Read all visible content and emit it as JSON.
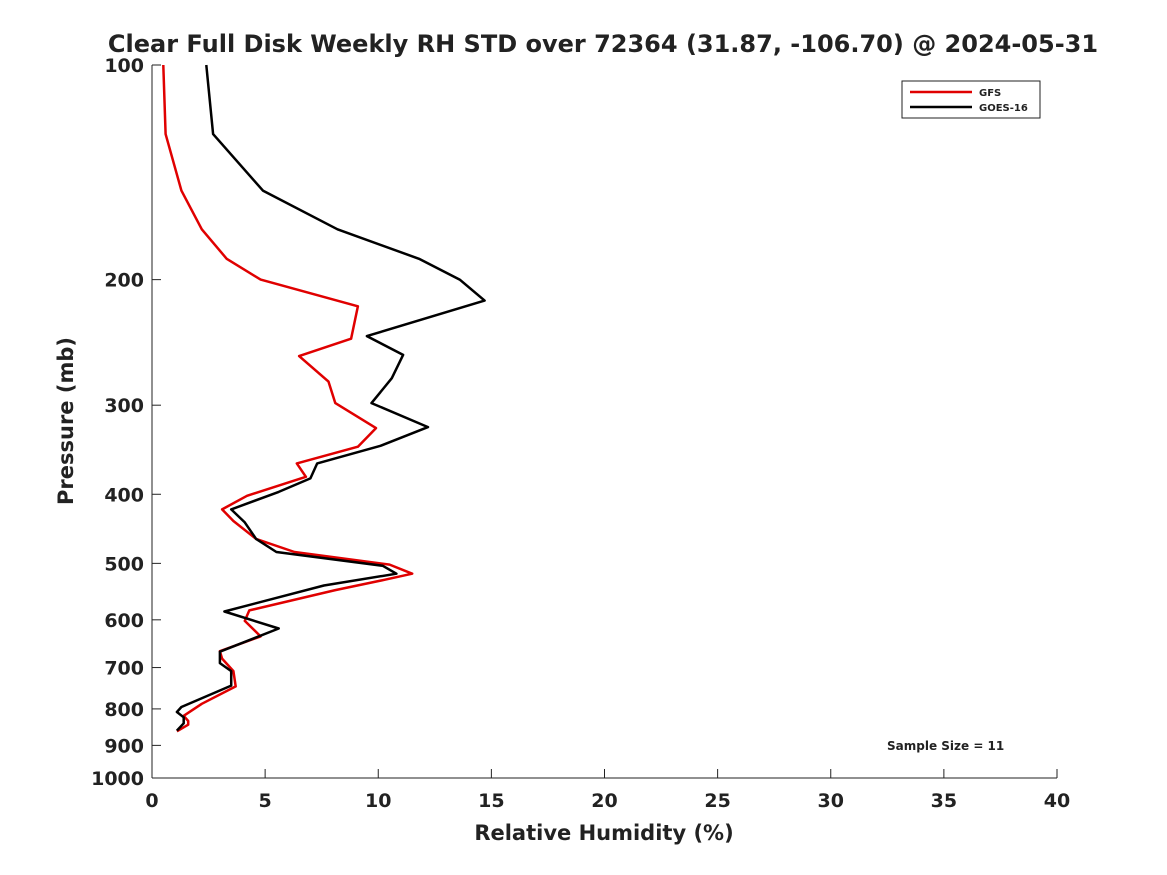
{
  "chart_data": {
    "type": "line",
    "title": "Clear Full Disk Weekly RH STD over 72364 (31.87, -106.70) @ 2024-05-31",
    "xlabel": "Relative Humidity (%)",
    "ylabel": "Pressure (mb)",
    "xlim": [
      0,
      40
    ],
    "ylim": [
      100,
      1000
    ],
    "yscale": "log",
    "y_reversed": true,
    "grid": false,
    "legend_position": "top-right",
    "x_ticks": [
      "0",
      "5",
      "10",
      "15",
      "20",
      "25",
      "30",
      "35",
      "40"
    ],
    "y_ticks": [
      "100",
      "200",
      "300",
      "400",
      "500",
      "600",
      "700",
      "800",
      "900",
      "1000"
    ],
    "annotation": "Sample Size = 11",
    "series": [
      {
        "name": "GFS",
        "color": "#e00000",
        "points": [
          [
            0.5,
            100
          ],
          [
            0.6,
            125
          ],
          [
            1.3,
            150
          ],
          [
            2.2,
            170
          ],
          [
            3.3,
            187
          ],
          [
            4.8,
            200
          ],
          [
            9.1,
            218
          ],
          [
            8.8,
            242
          ],
          [
            6.5,
            256
          ],
          [
            7.8,
            278
          ],
          [
            8.1,
            298
          ],
          [
            9.9,
            323
          ],
          [
            9.1,
            343
          ],
          [
            6.4,
            362
          ],
          [
            6.8,
            378
          ],
          [
            4.2,
            402
          ],
          [
            3.1,
            420
          ],
          [
            3.6,
            436
          ],
          [
            4.6,
            462
          ],
          [
            6.3,
            482
          ],
          [
            10.5,
            502
          ],
          [
            11.5,
            517
          ],
          [
            10.3,
            527
          ],
          [
            8.1,
            545
          ],
          [
            4.3,
            582
          ],
          [
            4.1,
            602
          ],
          [
            4.8,
            633
          ],
          [
            3.0,
            664
          ],
          [
            3.1,
            680
          ],
          [
            3.6,
            708
          ],
          [
            3.7,
            744
          ],
          [
            2.2,
            787
          ],
          [
            1.4,
            818
          ],
          [
            1.6,
            832
          ],
          [
            1.6,
            842
          ],
          [
            1.1,
            860
          ]
        ]
      },
      {
        "name": "GOES-16",
        "color": "#000000",
        "points": [
          [
            2.4,
            100
          ],
          [
            2.7,
            125
          ],
          [
            4.9,
            150
          ],
          [
            8.2,
            170
          ],
          [
            11.8,
            187
          ],
          [
            13.6,
            200
          ],
          [
            14.7,
            214
          ],
          [
            9.5,
            240
          ],
          [
            11.1,
            255
          ],
          [
            10.6,
            275
          ],
          [
            9.7,
            298
          ],
          [
            12.2,
            322
          ],
          [
            10.1,
            342
          ],
          [
            7.3,
            362
          ],
          [
            7.0,
            380
          ],
          [
            5.6,
            397
          ],
          [
            3.5,
            420
          ],
          [
            4.1,
            438
          ],
          [
            4.6,
            462
          ],
          [
            5.5,
            482
          ],
          [
            10.2,
            504
          ],
          [
            10.8,
            517
          ],
          [
            7.6,
            537
          ],
          [
            3.2,
            584
          ],
          [
            5.6,
            617
          ],
          [
            3.0,
            665
          ],
          [
            3.0,
            690
          ],
          [
            3.5,
            708
          ],
          [
            3.5,
            742
          ],
          [
            1.3,
            795
          ],
          [
            1.1,
            808
          ],
          [
            1.4,
            822
          ],
          [
            1.4,
            838
          ],
          [
            1.1,
            858
          ]
        ]
      }
    ]
  }
}
